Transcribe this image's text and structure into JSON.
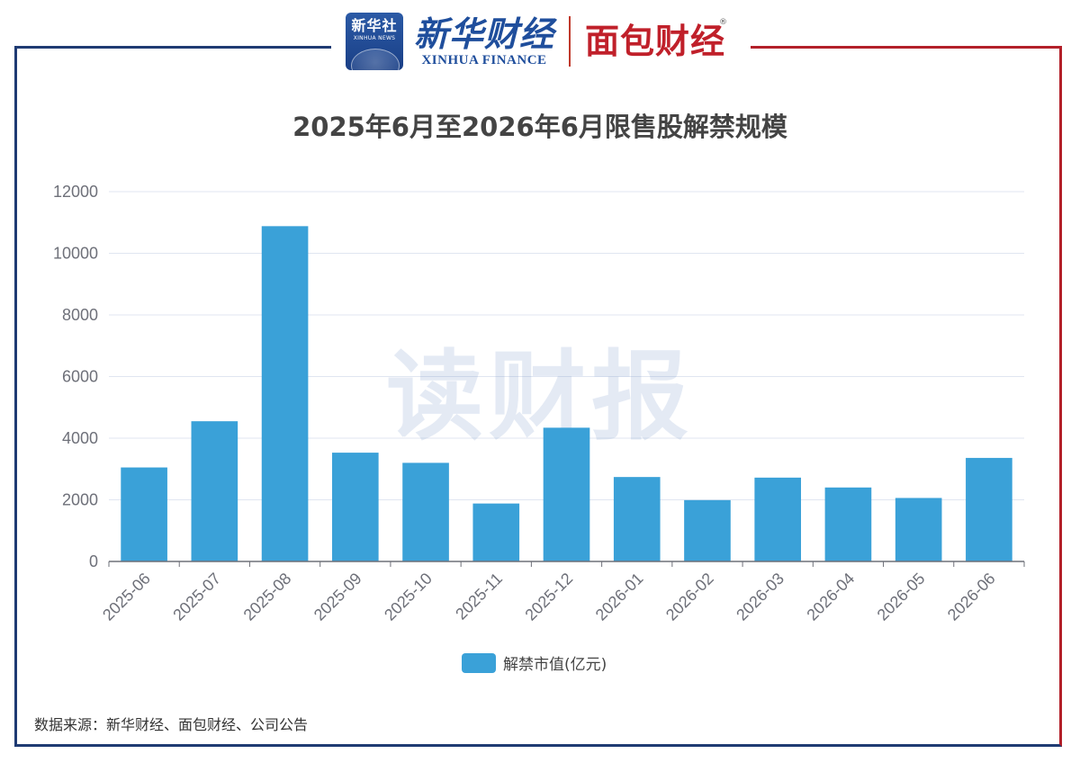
{
  "header": {
    "xinhua_logo_cn": "新华社",
    "xinhua_logo_en": "XINHUA NEWS",
    "xinhua_finance_cn": "新华财经",
    "xinhua_finance_en": "XINHUA FINANCE",
    "mianbao_cn": "面包财经",
    "mianbao_reg": "®"
  },
  "colors": {
    "bar": "#3aa1d8",
    "left_border": "#1f3b73",
    "right_border": "#b3202a"
  },
  "watermark": "读财报",
  "source": "数据来源：新华财经、面包财经、公司公告",
  "chart_data": {
    "type": "bar",
    "title": "2025年6月至2026年6月限售股解禁规模",
    "xlabel": "",
    "ylabel": "",
    "categories": [
      "2025-06",
      "2025-07",
      "2025-08",
      "2025-09",
      "2025-10",
      "2025-11",
      "2025-12",
      "2026-01",
      "2026-02",
      "2026-03",
      "2026-04",
      "2026-05",
      "2026-06"
    ],
    "series": [
      {
        "name": "解禁市值(亿元)",
        "values": [
          3050,
          4550,
          10880,
          3530,
          3200,
          1880,
          4340,
          2740,
          1990,
          2720,
          2400,
          2060,
          3360
        ]
      }
    ],
    "ylim": [
      0,
      12000
    ],
    "yticks": [
      0,
      2000,
      4000,
      6000,
      8000,
      10000,
      12000
    ],
    "grid": true,
    "legend_position": "bottom"
  }
}
